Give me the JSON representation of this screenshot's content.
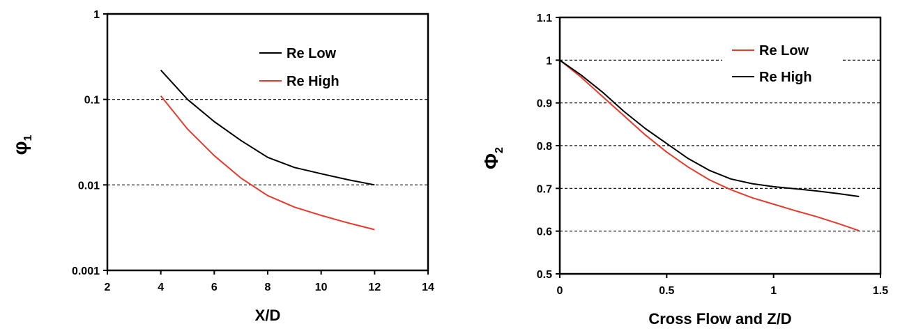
{
  "chart_data": [
    {
      "type": "line",
      "xlabel": "X/D",
      "ylabel": "φ",
      "ylabel_sub": "1",
      "xlim": [
        2,
        14
      ],
      "ylim": [
        0.001,
        1
      ],
      "yscale": "log",
      "x_ticks": [
        "2",
        "4",
        "6",
        "8",
        "10",
        "12",
        "14"
      ],
      "y_ticks": [
        "0.001",
        "0.01",
        "0.1",
        "1"
      ],
      "gridlines_y": [
        0.01,
        0.1
      ],
      "grid": "dashed horizontal",
      "legend_position": "top-right",
      "series": [
        {
          "name": "Re Low",
          "color": "#000000",
          "points": [
            [
              4,
              0.22
            ],
            [
              5,
              0.1
            ],
            [
              6,
              0.055
            ],
            [
              7,
              0.033
            ],
            [
              8,
              0.021
            ],
            [
              9,
              0.016
            ],
            [
              10,
              0.0135
            ],
            [
              11,
              0.0115
            ],
            [
              12,
              0.01
            ]
          ]
        },
        {
          "name": "Re High",
          "color": "#e8392b",
          "points": [
            [
              4,
              0.11
            ],
            [
              5,
              0.045
            ],
            [
              6,
              0.022
            ],
            [
              7,
              0.012
            ],
            [
              8,
              0.0075
            ],
            [
              9,
              0.0055
            ],
            [
              10,
              0.0044
            ],
            [
              11,
              0.0036
            ],
            [
              12,
              0.003
            ]
          ]
        }
      ]
    },
    {
      "type": "line",
      "xlabel": "Cross Flow and Z/D",
      "ylabel": "Φ",
      "ylabel_sub": "2",
      "xlim": [
        0,
        1.5
      ],
      "ylim": [
        0.5,
        1.1
      ],
      "x_ticks": [
        "0",
        "0.5",
        "1",
        "1.5"
      ],
      "y_ticks": [
        "0.5",
        "0.6",
        "0.7",
        "0.8",
        "0.9",
        "1",
        "1.1"
      ],
      "gridlines_y": [
        0.6,
        0.7,
        0.8,
        0.9,
        1.0
      ],
      "grid": "dashed horizontal",
      "legend_position": "top-right",
      "series": [
        {
          "name": "Re Low",
          "color": "#e8392b",
          "points": [
            [
              0,
              1.0
            ],
            [
              0.1,
              0.96
            ],
            [
              0.2,
              0.915
            ],
            [
              0.3,
              0.87
            ],
            [
              0.4,
              0.825
            ],
            [
              0.5,
              0.785
            ],
            [
              0.6,
              0.75
            ],
            [
              0.7,
              0.72
            ],
            [
              0.8,
              0.697
            ],
            [
              0.9,
              0.678
            ],
            [
              1.0,
              0.663
            ],
            [
              1.1,
              0.648
            ],
            [
              1.2,
              0.634
            ],
            [
              1.3,
              0.618
            ],
            [
              1.4,
              0.601
            ]
          ]
        },
        {
          "name": "Re High",
          "color": "#000000",
          "points": [
            [
              0,
              1.0
            ],
            [
              0.1,
              0.965
            ],
            [
              0.2,
              0.925
            ],
            [
              0.3,
              0.88
            ],
            [
              0.4,
              0.84
            ],
            [
              0.5,
              0.805
            ],
            [
              0.6,
              0.77
            ],
            [
              0.7,
              0.742
            ],
            [
              0.8,
              0.722
            ],
            [
              0.9,
              0.711
            ],
            [
              1.0,
              0.704
            ],
            [
              1.1,
              0.699
            ],
            [
              1.2,
              0.694
            ],
            [
              1.3,
              0.688
            ],
            [
              1.4,
              0.681
            ]
          ]
        }
      ]
    }
  ]
}
